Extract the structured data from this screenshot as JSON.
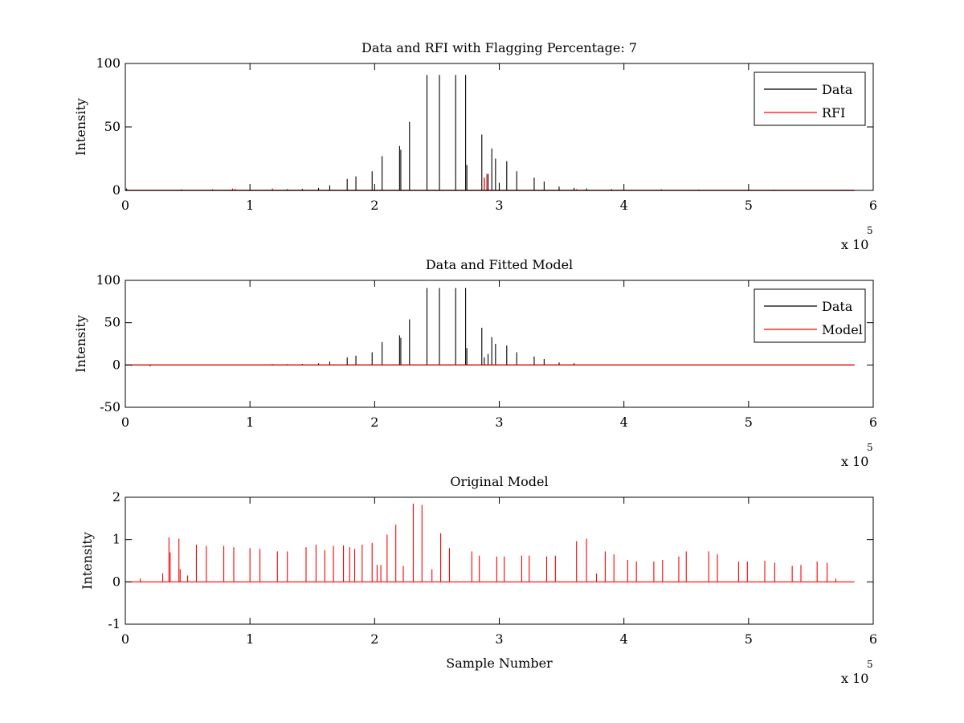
{
  "chart_data": [
    {
      "type": "line",
      "title": "Data and RFI with Flagging Percentage: 7",
      "xlabel": "",
      "ylabel": "Intensity",
      "xlim": [
        0,
        6
      ],
      "ylim": [
        0,
        100
      ],
      "xticks": [
        "0",
        "1",
        "2",
        "3",
        "4",
        "5",
        "6"
      ],
      "yticks": [
        "0",
        "50",
        "100"
      ],
      "x_exponent": {
        "base": "x 10",
        "power": "5"
      },
      "legend": [
        "Data",
        "RFI"
      ],
      "legend_position": "top-right",
      "series": [
        {
          "name": "Data",
          "color": "#000000",
          "kind": "spikes",
          "points": [
            [
              0.01,
              1.5
            ],
            [
              0.45,
              0.8
            ],
            [
              0.7,
              0.8
            ],
            [
              1.0,
              0.8
            ],
            [
              1.18,
              1.2
            ],
            [
              1.3,
              1.0
            ],
            [
              1.42,
              1.2
            ],
            [
              1.55,
              2
            ],
            [
              1.64,
              4
            ],
            [
              1.78,
              9
            ],
            [
              1.85,
              11
            ],
            [
              1.98,
              15
            ],
            [
              2.06,
              27
            ],
            [
              2.2,
              35
            ],
            [
              2.21,
              32
            ],
            [
              2.28,
              54
            ],
            [
              2.42,
              91
            ],
            [
              2.52,
              91
            ],
            [
              2.65,
              91
            ],
            [
              2.73,
              91
            ],
            [
              2.74,
              20
            ],
            [
              2.86,
              44
            ],
            [
              2.88,
              10
            ],
            [
              2.91,
              13
            ],
            [
              2.94,
              33
            ],
            [
              2.97,
              25
            ],
            [
              3.0,
              6
            ],
            [
              3.06,
              23
            ],
            [
              3.14,
              15
            ],
            [
              3.28,
              10
            ],
            [
              3.36,
              7
            ],
            [
              3.48,
              3
            ],
            [
              3.6,
              2
            ],
            [
              3.7,
              1.5
            ],
            [
              3.9,
              1
            ],
            [
              4.3,
              0.8
            ],
            [
              4.6,
              0.6
            ],
            [
              5.2,
              0.5
            ],
            [
              5.8,
              0.4
            ]
          ]
        },
        {
          "name": "RFI",
          "color": "#ff0000",
          "kind": "spikes",
          "points": [
            [
              0.86,
              1.5
            ],
            [
              0.88,
              1.2
            ],
            [
              1.18,
              1.5
            ],
            [
              2.88,
              10
            ],
            [
              2.9,
              13
            ],
            [
              3.62,
              1
            ]
          ]
        }
      ]
    },
    {
      "type": "line",
      "title": "Data and Fitted Model",
      "xlabel": "",
      "ylabel": "Intensity",
      "xlim": [
        0,
        6
      ],
      "ylim": [
        -50,
        100
      ],
      "xticks": [
        "0",
        "1",
        "2",
        "3",
        "4",
        "5",
        "6"
      ],
      "yticks": [
        "-50",
        "0",
        "50",
        "100"
      ],
      "x_exponent": {
        "base": "x 10",
        "power": "5"
      },
      "legend": [
        "Data",
        "Model"
      ],
      "legend_position": "top-right",
      "series": [
        {
          "name": "Data",
          "color": "#000000",
          "kind": "spikes",
          "points": [
            [
              0.05,
              -1
            ],
            [
              0.2,
              -1.5
            ],
            [
              1.18,
              1
            ],
            [
              1.3,
              1
            ],
            [
              1.42,
              1.2
            ],
            [
              1.55,
              2
            ],
            [
              1.64,
              4
            ],
            [
              1.78,
              9
            ],
            [
              1.85,
              11
            ],
            [
              1.98,
              15
            ],
            [
              2.06,
              27
            ],
            [
              2.2,
              35
            ],
            [
              2.21,
              32
            ],
            [
              2.28,
              54
            ],
            [
              2.42,
              91
            ],
            [
              2.52,
              91
            ],
            [
              2.65,
              91
            ],
            [
              2.73,
              91
            ],
            [
              2.74,
              20
            ],
            [
              2.86,
              44
            ],
            [
              2.88,
              9
            ],
            [
              2.91,
              13
            ],
            [
              2.94,
              33
            ],
            [
              2.97,
              25
            ],
            [
              3.06,
              23
            ],
            [
              3.14,
              15
            ],
            [
              3.28,
              10
            ],
            [
              3.36,
              7
            ],
            [
              3.48,
              3
            ],
            [
              3.6,
              2
            ]
          ]
        },
        {
          "name": "Model",
          "color": "#ff0000",
          "kind": "baseline",
          "points": [
            [
              0,
              0
            ],
            [
              5.85,
              0
            ]
          ]
        }
      ]
    },
    {
      "type": "line",
      "title": "Original Model",
      "xlabel": "Sample Number",
      "ylabel": "Intensity",
      "xlim": [
        0,
        6
      ],
      "ylim": [
        -1,
        2
      ],
      "xticks": [
        "0",
        "1",
        "2",
        "3",
        "4",
        "5",
        "6"
      ],
      "yticks": [
        "-1",
        "0",
        "1",
        "2"
      ],
      "x_exponent": {
        "base": "x 10",
        "power": "5"
      },
      "legend": [],
      "series": [
        {
          "name": "Model",
          "color": "#ff0000",
          "kind": "spikes",
          "points": [
            [
              0.12,
              0.08
            ],
            [
              0.3,
              0.2
            ],
            [
              0.35,
              1.05
            ],
            [
              0.36,
              0.7
            ],
            [
              0.43,
              1.02
            ],
            [
              0.44,
              0.3
            ],
            [
              0.5,
              0.15
            ],
            [
              0.57,
              0.88
            ],
            [
              0.65,
              0.85
            ],
            [
              0.79,
              0.85
            ],
            [
              0.87,
              0.82
            ],
            [
              1.0,
              0.8
            ],
            [
              1.08,
              0.78
            ],
            [
              1.22,
              0.72
            ],
            [
              1.3,
              0.72
            ],
            [
              1.45,
              0.82
            ],
            [
              1.53,
              0.88
            ],
            [
              1.6,
              0.75
            ],
            [
              1.67,
              0.85
            ],
            [
              1.75,
              0.86
            ],
            [
              1.8,
              0.82
            ],
            [
              1.84,
              0.78
            ],
            [
              1.9,
              0.88
            ],
            [
              1.98,
              0.92
            ],
            [
              2.02,
              0.4
            ],
            [
              2.05,
              0.4
            ],
            [
              2.1,
              1.12
            ],
            [
              2.17,
              1.35
            ],
            [
              2.23,
              0.38
            ],
            [
              2.31,
              1.85
            ],
            [
              2.38,
              1.82
            ],
            [
              2.46,
              0.3
            ],
            [
              2.53,
              1.15
            ],
            [
              2.6,
              0.8
            ],
            [
              2.78,
              0.72
            ],
            [
              2.84,
              0.62
            ],
            [
              2.98,
              0.6
            ],
            [
              3.04,
              0.6
            ],
            [
              3.18,
              0.62
            ],
            [
              3.24,
              0.62
            ],
            [
              3.38,
              0.6
            ],
            [
              3.45,
              0.62
            ],
            [
              3.62,
              0.96
            ],
            [
              3.7,
              1.02
            ],
            [
              3.78,
              0.2
            ],
            [
              3.85,
              0.72
            ],
            [
              3.92,
              0.65
            ],
            [
              4.03,
              0.52
            ],
            [
              4.1,
              0.48
            ],
            [
              4.24,
              0.48
            ],
            [
              4.31,
              0.52
            ],
            [
              4.44,
              0.6
            ],
            [
              4.5,
              0.72
            ],
            [
              4.68,
              0.72
            ],
            [
              4.75,
              0.65
            ],
            [
              4.92,
              0.48
            ],
            [
              4.99,
              0.48
            ],
            [
              5.13,
              0.5
            ],
            [
              5.21,
              0.45
            ],
            [
              5.35,
              0.38
            ],
            [
              5.42,
              0.4
            ],
            [
              5.55,
              0.48
            ],
            [
              5.63,
              0.45
            ],
            [
              5.7,
              0.08
            ]
          ]
        }
      ]
    }
  ]
}
